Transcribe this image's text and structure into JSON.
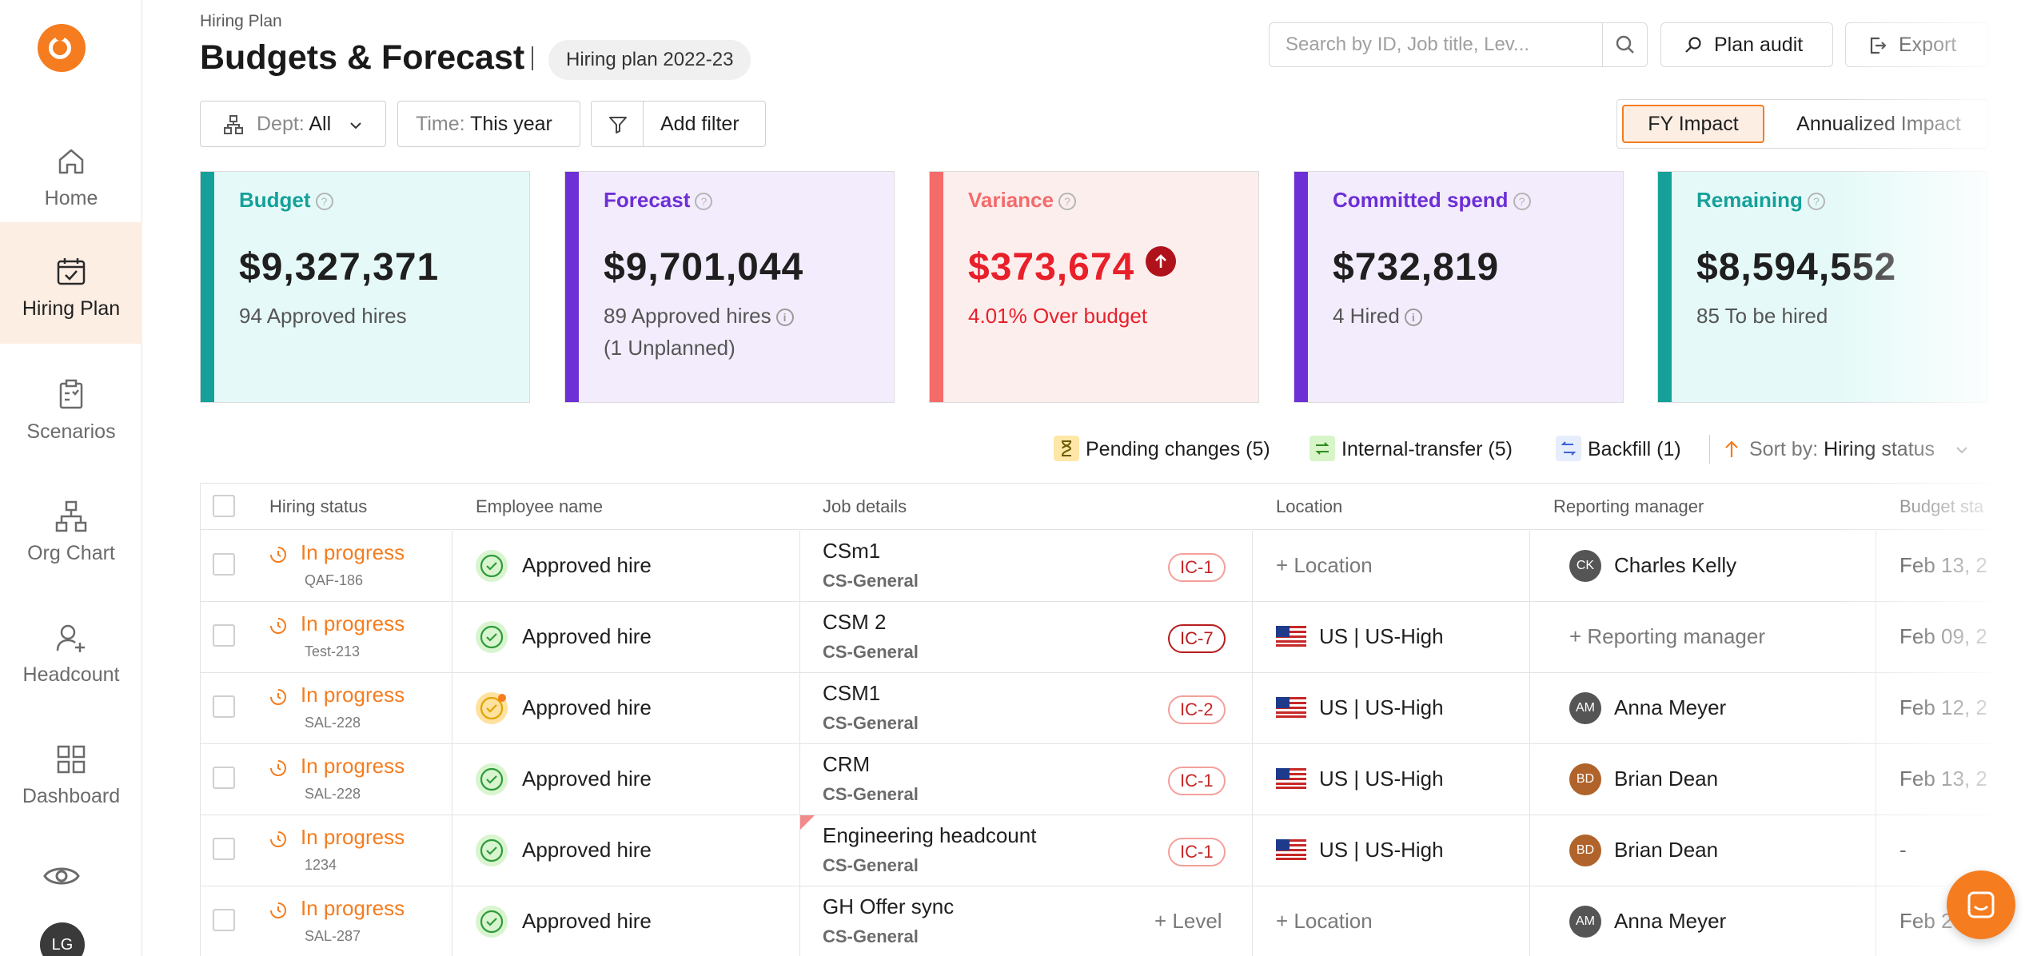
{
  "sidebar": {
    "items": [
      {
        "label": "Home",
        "icon": "home-icon"
      },
      {
        "label": "Hiring Plan",
        "icon": "calendar-check-icon"
      },
      {
        "label": "Scenarios",
        "icon": "clipboard-icon"
      },
      {
        "label": "Org Chart",
        "icon": "org-chart-icon"
      },
      {
        "label": "Headcount",
        "icon": "user-plus-icon"
      },
      {
        "label": "Dashboard",
        "icon": "grid-icon"
      }
    ],
    "avatar_initials": "LG"
  },
  "header": {
    "breadcrumb": "Hiring Plan",
    "title": "Budgets & Forecast",
    "plan": "Hiring plan 2022-23",
    "search_placeholder": "Search by ID, Job title, Lev...",
    "plan_audit": "Plan audit",
    "export": "Export"
  },
  "filters": {
    "dept_label": "Dept:",
    "dept_value": "All",
    "time_label": "Time:",
    "time_value": "This year",
    "add_filter": "Add filter",
    "impact_options": [
      "FY Impact",
      "Annualized Impact"
    ],
    "impact_selected": "FY Impact"
  },
  "cards": [
    {
      "title": "Budget",
      "value": "$9,327,371",
      "sub": "94 Approved hires",
      "sub2": "",
      "color": "#16a09a",
      "bg": "#e5faf8",
      "title_color": "#16a09a"
    },
    {
      "title": "Forecast",
      "value": "$9,701,044",
      "sub": "89 Approved hires",
      "sub2": "(1 Unplanned)",
      "color": "#6d2fd6",
      "bg": "#f3ecfc",
      "title_color": "#6d2fd6"
    },
    {
      "title": "Variance",
      "value": "$373,674",
      "sub": "4.01% Over budget",
      "sub2": "",
      "color": "#f36b6b",
      "bg": "#fdeeee",
      "title_color": "#f36b6b"
    },
    {
      "title": "Committed spend",
      "value": "$732,819",
      "sub": "4 Hired",
      "sub2": "",
      "color": "#6d2fd6",
      "bg": "#f3ecfc",
      "title_color": "#6d2fd6"
    },
    {
      "title": "Remaining",
      "value": "$8,594,552",
      "sub": "85 To be hired",
      "sub2": "",
      "color": "#16a09a",
      "bg": "#e5faf8",
      "title_color": "#16a09a"
    }
  ],
  "legend": {
    "pending": "Pending changes (5)",
    "internal": "Internal-transfer (5)",
    "backfill": "Backfill (1)",
    "sort_label": "Sort by:",
    "sort_value": "Hiring status"
  },
  "table": {
    "columns": [
      "Hiring status",
      "Employee name",
      "Job details",
      "Location",
      "Reporting manager",
      "Budget sta"
    ],
    "rows": [
      {
        "status": "In progress",
        "id": "QAF-186",
        "employee": "Approved hire",
        "emp_pending": false,
        "job": "CSm1",
        "dept": "CS-General",
        "level": "IC-1",
        "level_style": "light",
        "location": "+ Location",
        "has_flag": false,
        "manager": "Charles Kelly",
        "mgr_initials": "CK",
        "mgr_color": "#555555",
        "date": "Feb 13, 2"
      },
      {
        "status": "In progress",
        "id": "Test-213",
        "employee": "Approved hire",
        "emp_pending": false,
        "job": "CSM 2",
        "dept": "CS-General",
        "level": "IC-7",
        "level_style": "dark",
        "location": "US | US-High",
        "has_flag": true,
        "manager": "+ Reporting manager",
        "mgr_initials": "",
        "mgr_color": "",
        "date": "Feb 09, 2"
      },
      {
        "status": "In progress",
        "id": "SAL-228",
        "employee": "Approved hire",
        "emp_pending": true,
        "job": "CSM1",
        "dept": "CS-General",
        "level": "IC-2",
        "level_style": "light",
        "location": "US | US-High",
        "has_flag": true,
        "manager": "Anna Meyer",
        "mgr_initials": "AM",
        "mgr_color": "#555555",
        "date": "Feb 12, 2"
      },
      {
        "status": "In progress",
        "id": "SAL-228",
        "employee": "Approved hire",
        "emp_pending": false,
        "job": "CRM",
        "dept": "CS-General",
        "level": "IC-1",
        "level_style": "light",
        "location": "US | US-High",
        "has_flag": true,
        "manager": "Brian Dean",
        "mgr_initials": "BD",
        "mgr_color": "#b0632b",
        "date": "Feb 13, 2"
      },
      {
        "status": "In progress",
        "id": "1234",
        "employee": "Approved hire",
        "emp_pending": false,
        "job": "Engineering headcount",
        "dept": "CS-General",
        "level": "IC-1",
        "level_style": "light",
        "location": "US | US-High",
        "has_flag": true,
        "manager": "Brian Dean",
        "mgr_initials": "BD",
        "mgr_color": "#b0632b",
        "date": "-"
      },
      {
        "status": "In progress",
        "id": "SAL-287",
        "employee": "Approved hire",
        "emp_pending": false,
        "job": "GH Offer sync",
        "dept": "CS-General",
        "level": "+ Level",
        "level_style": "add",
        "location": "+ Location",
        "has_flag": false,
        "manager": "Anna Meyer",
        "mgr_initials": "AM",
        "mgr_color": "#555555",
        "date": "Feb 2"
      }
    ]
  },
  "colors": {
    "accent": "#f57c1f",
    "variance_red": "#e8202a"
  }
}
